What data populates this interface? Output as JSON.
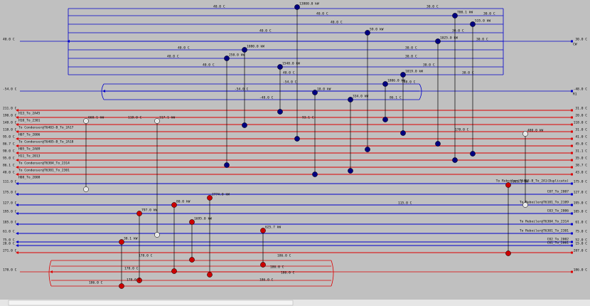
{
  "streams": [
    {
      "name": "CW",
      "supply": "40.0 C",
      "target": "30.0 C",
      "color": "#0000cc"
    },
    {
      "name": "R1",
      "supply": "-54.0 C",
      "target": "-48.0 C",
      "color": "#0000cc"
    },
    {
      "name": "H13_To_2A45",
      "supply": "211.0 C",
      "target": "31.0 C",
      "color": "#dd0000"
    },
    {
      "name": "H10_To_2301",
      "supply": "190.0 C",
      "target": "20.0 C",
      "color": "#dd0000"
    },
    {
      "name": "To Condenser@T6403-B_To_2A17",
      "supply": "148.0 C",
      "target": "118.0 C",
      "color": "#dd0000"
    },
    {
      "name": "H07_To_2006",
      "supply": "118.0 C",
      "target": "31.0 C",
      "color": "#dd0000"
    },
    {
      "name": "To Condenser@T6405-B_To_2A18",
      "supply": "95.0 C",
      "target": "41.0 C",
      "color": "#dd0000"
    },
    {
      "name": "H05_To_2A09",
      "supply": "86.7 C",
      "target": "45.0 C",
      "color": "#dd0000"
    },
    {
      "name": "H11_To_2013",
      "supply": "90.0 C",
      "target": "31.1 C",
      "color": "#dd0000"
    },
    {
      "name": "To Condenser@T6304_To_2314",
      "supply": "95.0 C",
      "target": "35.0 C",
      "color": "#dd0000"
    },
    {
      "name": "To Condenser@T6301_To_2301",
      "supply": "86.1 C",
      "target": "38.7 C",
      "color": "#dd0000"
    },
    {
      "name": "H08_To_2008",
      "supply": "48.0 C",
      "target": "43.0 C",
      "color": "#dd0000"
    },
    {
      "name": "To Reboiler@T6403-B_To_2A1(Duplicate)",
      "supply": "111.0 C",
      "target": "175.0 C",
      "color": "#0000cc"
    },
    {
      "name": "C07_To_2007",
      "supply": "175.0 C",
      "target": "127.0 C",
      "color": "#0000cc"
    },
    {
      "name": "To Reboiler@T6101_To_2109",
      "supply": "127.0 C",
      "target": "195.0 C",
      "color": "#0000cc"
    },
    {
      "name": "C03_To_2006",
      "supply": "195.0 C",
      "target": "185.0 C",
      "color": "#0000cc"
    },
    {
      "name": "To Reboiler@T6304_To_2314",
      "supply": "185.0 C",
      "target": "61.0 C",
      "color": "#0000cc"
    },
    {
      "name": "To Reboiler@T6301_To_2301",
      "supply": "61.0 C",
      "target": "75.0 C",
      "color": "#0000cc"
    },
    {
      "name": "C02_To_2002",
      "supply": "75.0 C",
      "target": "52.0 C",
      "color": "#0000cc"
    },
    {
      "name": "C01_To_2001",
      "supply": "28.0 C",
      "target": "15.0 C",
      "color": "#0000cc"
    },
    {
      "name": "",
      "supply": "271.0 C",
      "target": "287.0 C",
      "color": "#dd0000"
    },
    {
      "name": "",
      "supply": "178.0 C",
      "target": "186.0 C",
      "color": "#dd0000"
    }
  ],
  "exchangers": [
    {
      "duty": "13800.0 kW",
      "color": "#000080"
    },
    {
      "duty": "700.1 kW",
      "color": "#000080"
    },
    {
      "duty": "535.0 kW",
      "color": "#000080"
    },
    {
      "duty": "59.0 kW",
      "color": "#000080"
    },
    {
      "duty": "1025.0 kW",
      "color": "#000080"
    },
    {
      "duty": "1080.0 kW",
      "color": "#000080"
    },
    {
      "duty": "258.0 kW",
      "color": "#000080"
    },
    {
      "duty": "1548.0 kW",
      "color": "#000080"
    },
    {
      "duty": "1806.0 kW",
      "color": "#000080"
    },
    {
      "duty": "1019.0 kW",
      "color": "#000080"
    },
    {
      "duty": "18.0 kW",
      "color": "#000080"
    },
    {
      "duty": "334.0 kW",
      "color": "#000080"
    },
    {
      "duty": "660.1 kW",
      "color": "#e8e8e8"
    },
    {
      "duty": "317.1 kW",
      "color": "#e8e8e8"
    },
    {
      "duty": "480.0 kW",
      "color": "#e8e8e8"
    },
    {
      "duty": "3103.1 kW",
      "color": "#cc0000"
    },
    {
      "duty": "797.0 kW",
      "color": "#cc0000"
    },
    {
      "duty": "80.0 kW",
      "color": "#cc0000"
    },
    {
      "duty": "2774.0 kW",
      "color": "#cc0000"
    },
    {
      "duty": "1695.0 kW",
      "color": "#cc0000"
    },
    {
      "duty": "625.7 kW",
      "color": "#cc0000"
    },
    {
      "duty": "38.1 kW",
      "color": "#cc0000"
    }
  ],
  "temps": [
    "40.0 C",
    "30.0 C",
    "40.0 C",
    "30.0 C",
    "40.0 C",
    "30.0 C",
    "40.0 C",
    "30.0 C",
    "40.0 C",
    "30.0 C",
    "40.0 C",
    "30.0 C",
    "40.0 C",
    "30.0 C",
    "40.0 C",
    "30.0 C",
    "-54.0 C",
    "-48.0 C",
    "-54.0 C",
    "-48.0 C",
    "86.1 C",
    "93.1 C",
    "118.0 C",
    "178.0 C",
    "178.0 C",
    "178.0 C",
    "178.0 C",
    "186.0 C",
    "186.0 C",
    "186.0 C",
    "186.0 C",
    "186.0 C",
    "115.0 C"
  ]
}
